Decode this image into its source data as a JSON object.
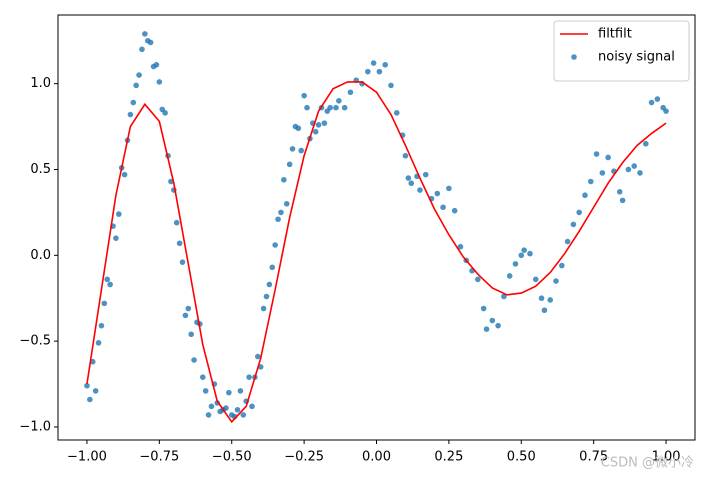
{
  "chart_data": {
    "type": "line_scatter",
    "xlim": [
      -1.1,
      1.1
    ],
    "ylim": [
      -1.076,
      1.4
    ],
    "xticks": [
      {
        "value": -1,
        "label": "−1.00"
      },
      {
        "value": -0.75,
        "label": "−0.75"
      },
      {
        "value": -0.5,
        "label": "−0.50"
      },
      {
        "value": -0.25,
        "label": "−0.25"
      },
      {
        "value": 0,
        "label": "0.00"
      },
      {
        "value": 0.25,
        "label": "0.25"
      },
      {
        "value": 0.5,
        "label": "0.50"
      },
      {
        "value": 0.75,
        "label": "0.75"
      },
      {
        "value": 1,
        "label": "1.00"
      }
    ],
    "yticks": [
      {
        "value": -1,
        "label": "−1.0"
      },
      {
        "value": -0.5,
        "label": "−0.5"
      },
      {
        "value": 0,
        "label": "0.0"
      },
      {
        "value": 0.5,
        "label": "0.5"
      },
      {
        "value": 1,
        "label": "1.0"
      }
    ],
    "legend": "upper right",
    "annotation": "CSDN @微小冷",
    "series": [
      {
        "name": "filtfilt",
        "kind": "line",
        "color": "#ff0000",
        "x": [
          -1.0,
          -0.95,
          -0.9,
          -0.85,
          -0.8,
          -0.75,
          -0.7,
          -0.65,
          -0.6,
          -0.55,
          -0.5,
          -0.45,
          -0.4,
          -0.35,
          -0.3,
          -0.25,
          -0.2,
          -0.15,
          -0.1,
          -0.05,
          0.0,
          0.05,
          0.1,
          0.15,
          0.2,
          0.25,
          0.3,
          0.35,
          0.4,
          0.45,
          0.5,
          0.55,
          0.6,
          0.65,
          0.7,
          0.75,
          0.8,
          0.85,
          0.9,
          0.95,
          1.0
        ],
        "values": [
          -0.75,
          -0.2,
          0.35,
          0.75,
          0.88,
          0.78,
          0.42,
          -0.05,
          -0.52,
          -0.85,
          -0.97,
          -0.88,
          -0.6,
          -0.2,
          0.22,
          0.58,
          0.84,
          0.97,
          1.01,
          1.01,
          0.95,
          0.82,
          0.64,
          0.45,
          0.27,
          0.12,
          -0.01,
          -0.11,
          -0.19,
          -0.23,
          -0.22,
          -0.18,
          -0.1,
          0.01,
          0.14,
          0.28,
          0.42,
          0.54,
          0.64,
          0.71,
          0.77
        ]
      },
      {
        "name": "noisy signal",
        "kind": "scatter",
        "color": "#1f77b4",
        "x": [
          -1.0,
          -0.99,
          -0.98,
          -0.97,
          -0.96,
          -0.95,
          -0.94,
          -0.93,
          -0.92,
          -0.91,
          -0.9,
          -0.89,
          -0.88,
          -0.87,
          -0.86,
          -0.85,
          -0.84,
          -0.83,
          -0.82,
          -0.81,
          -0.8,
          -0.79,
          -0.78,
          -0.77,
          -0.76,
          -0.75,
          -0.74,
          -0.73,
          -0.72,
          -0.71,
          -0.7,
          -0.69,
          -0.68,
          -0.67,
          -0.66,
          -0.65,
          -0.64,
          -0.63,
          -0.62,
          -0.61,
          -0.6,
          -0.59,
          -0.58,
          -0.57,
          -0.56,
          -0.55,
          -0.54,
          -0.53,
          -0.52,
          -0.51,
          -0.5,
          -0.49,
          -0.48,
          -0.47,
          -0.46,
          -0.45,
          -0.44,
          -0.43,
          -0.42,
          -0.41,
          -0.4,
          -0.39,
          -0.38,
          -0.37,
          -0.36,
          -0.35,
          -0.34,
          -0.33,
          -0.32,
          -0.31,
          -0.3,
          -0.29,
          -0.28,
          -0.27,
          -0.26,
          -0.25,
          -0.24,
          -0.23,
          -0.22,
          -0.21,
          -0.2,
          -0.19,
          -0.18,
          -0.17,
          -0.16,
          -0.14,
          -0.13,
          -0.11,
          -0.09,
          -0.07,
          -0.05,
          -0.03,
          -0.01,
          0.01,
          0.03,
          0.05,
          0.07,
          0.09,
          0.1,
          0.11,
          0.12,
          0.14,
          0.15,
          0.17,
          0.19,
          0.21,
          0.23,
          0.25,
          0.27,
          0.29,
          0.31,
          0.33,
          0.35,
          0.37,
          0.38,
          0.4,
          0.42,
          0.44,
          0.46,
          0.48,
          0.5,
          0.51,
          0.53,
          0.55,
          0.57,
          0.58,
          0.6,
          0.62,
          0.64,
          0.66,
          0.68,
          0.7,
          0.72,
          0.74,
          0.76,
          0.78,
          0.8,
          0.82,
          0.84,
          0.85,
          0.87,
          0.89,
          0.91,
          0.93,
          0.95,
          0.97,
          0.99,
          1.0
        ],
        "values": [
          -0.76,
          -0.84,
          -0.62,
          -0.79,
          -0.51,
          -0.41,
          -0.28,
          -0.14,
          -0.17,
          0.17,
          0.1,
          0.24,
          0.51,
          0.47,
          0.67,
          0.82,
          0.89,
          0.99,
          1.05,
          1.2,
          1.29,
          1.25,
          1.24,
          1.1,
          1.11,
          1.01,
          0.85,
          0.83,
          0.58,
          0.43,
          0.38,
          0.19,
          0.07,
          -0.04,
          -0.35,
          -0.31,
          -0.46,
          -0.61,
          -0.39,
          -0.4,
          -0.71,
          -0.79,
          -0.93,
          -0.88,
          -0.75,
          -0.86,
          -0.91,
          -0.9,
          -0.89,
          -0.8,
          -0.93,
          -0.94,
          -0.9,
          -0.79,
          -0.93,
          -0.85,
          -0.71,
          -0.88,
          -0.71,
          -0.59,
          -0.65,
          -0.31,
          -0.24,
          -0.17,
          -0.07,
          0.06,
          0.21,
          0.25,
          0.44,
          0.3,
          0.53,
          0.62,
          0.75,
          0.74,
          0.61,
          0.93,
          0.86,
          0.68,
          0.77,
          0.72,
          0.76,
          0.86,
          0.77,
          0.84,
          0.86,
          0.86,
          0.9,
          0.86,
          0.95,
          1.02,
          1.0,
          1.07,
          1.12,
          1.07,
          1.11,
          0.99,
          0.83,
          0.7,
          0.58,
          0.45,
          0.42,
          0.46,
          0.38,
          0.47,
          0.33,
          0.36,
          0.28,
          0.39,
          0.26,
          0.05,
          -0.03,
          -0.09,
          -0.14,
          -0.31,
          -0.43,
          -0.38,
          -0.41,
          -0.24,
          -0.12,
          -0.05,
          0.0,
          0.03,
          0.01,
          -0.14,
          -0.25,
          -0.32,
          -0.26,
          -0.15,
          -0.06,
          0.08,
          0.18,
          0.25,
          0.35,
          0.43,
          0.59,
          0.48,
          0.57,
          0.49,
          0.37,
          0.32,
          0.5,
          0.52,
          0.48,
          0.65,
          0.89,
          0.91,
          0.86,
          0.84
        ]
      }
    ]
  }
}
